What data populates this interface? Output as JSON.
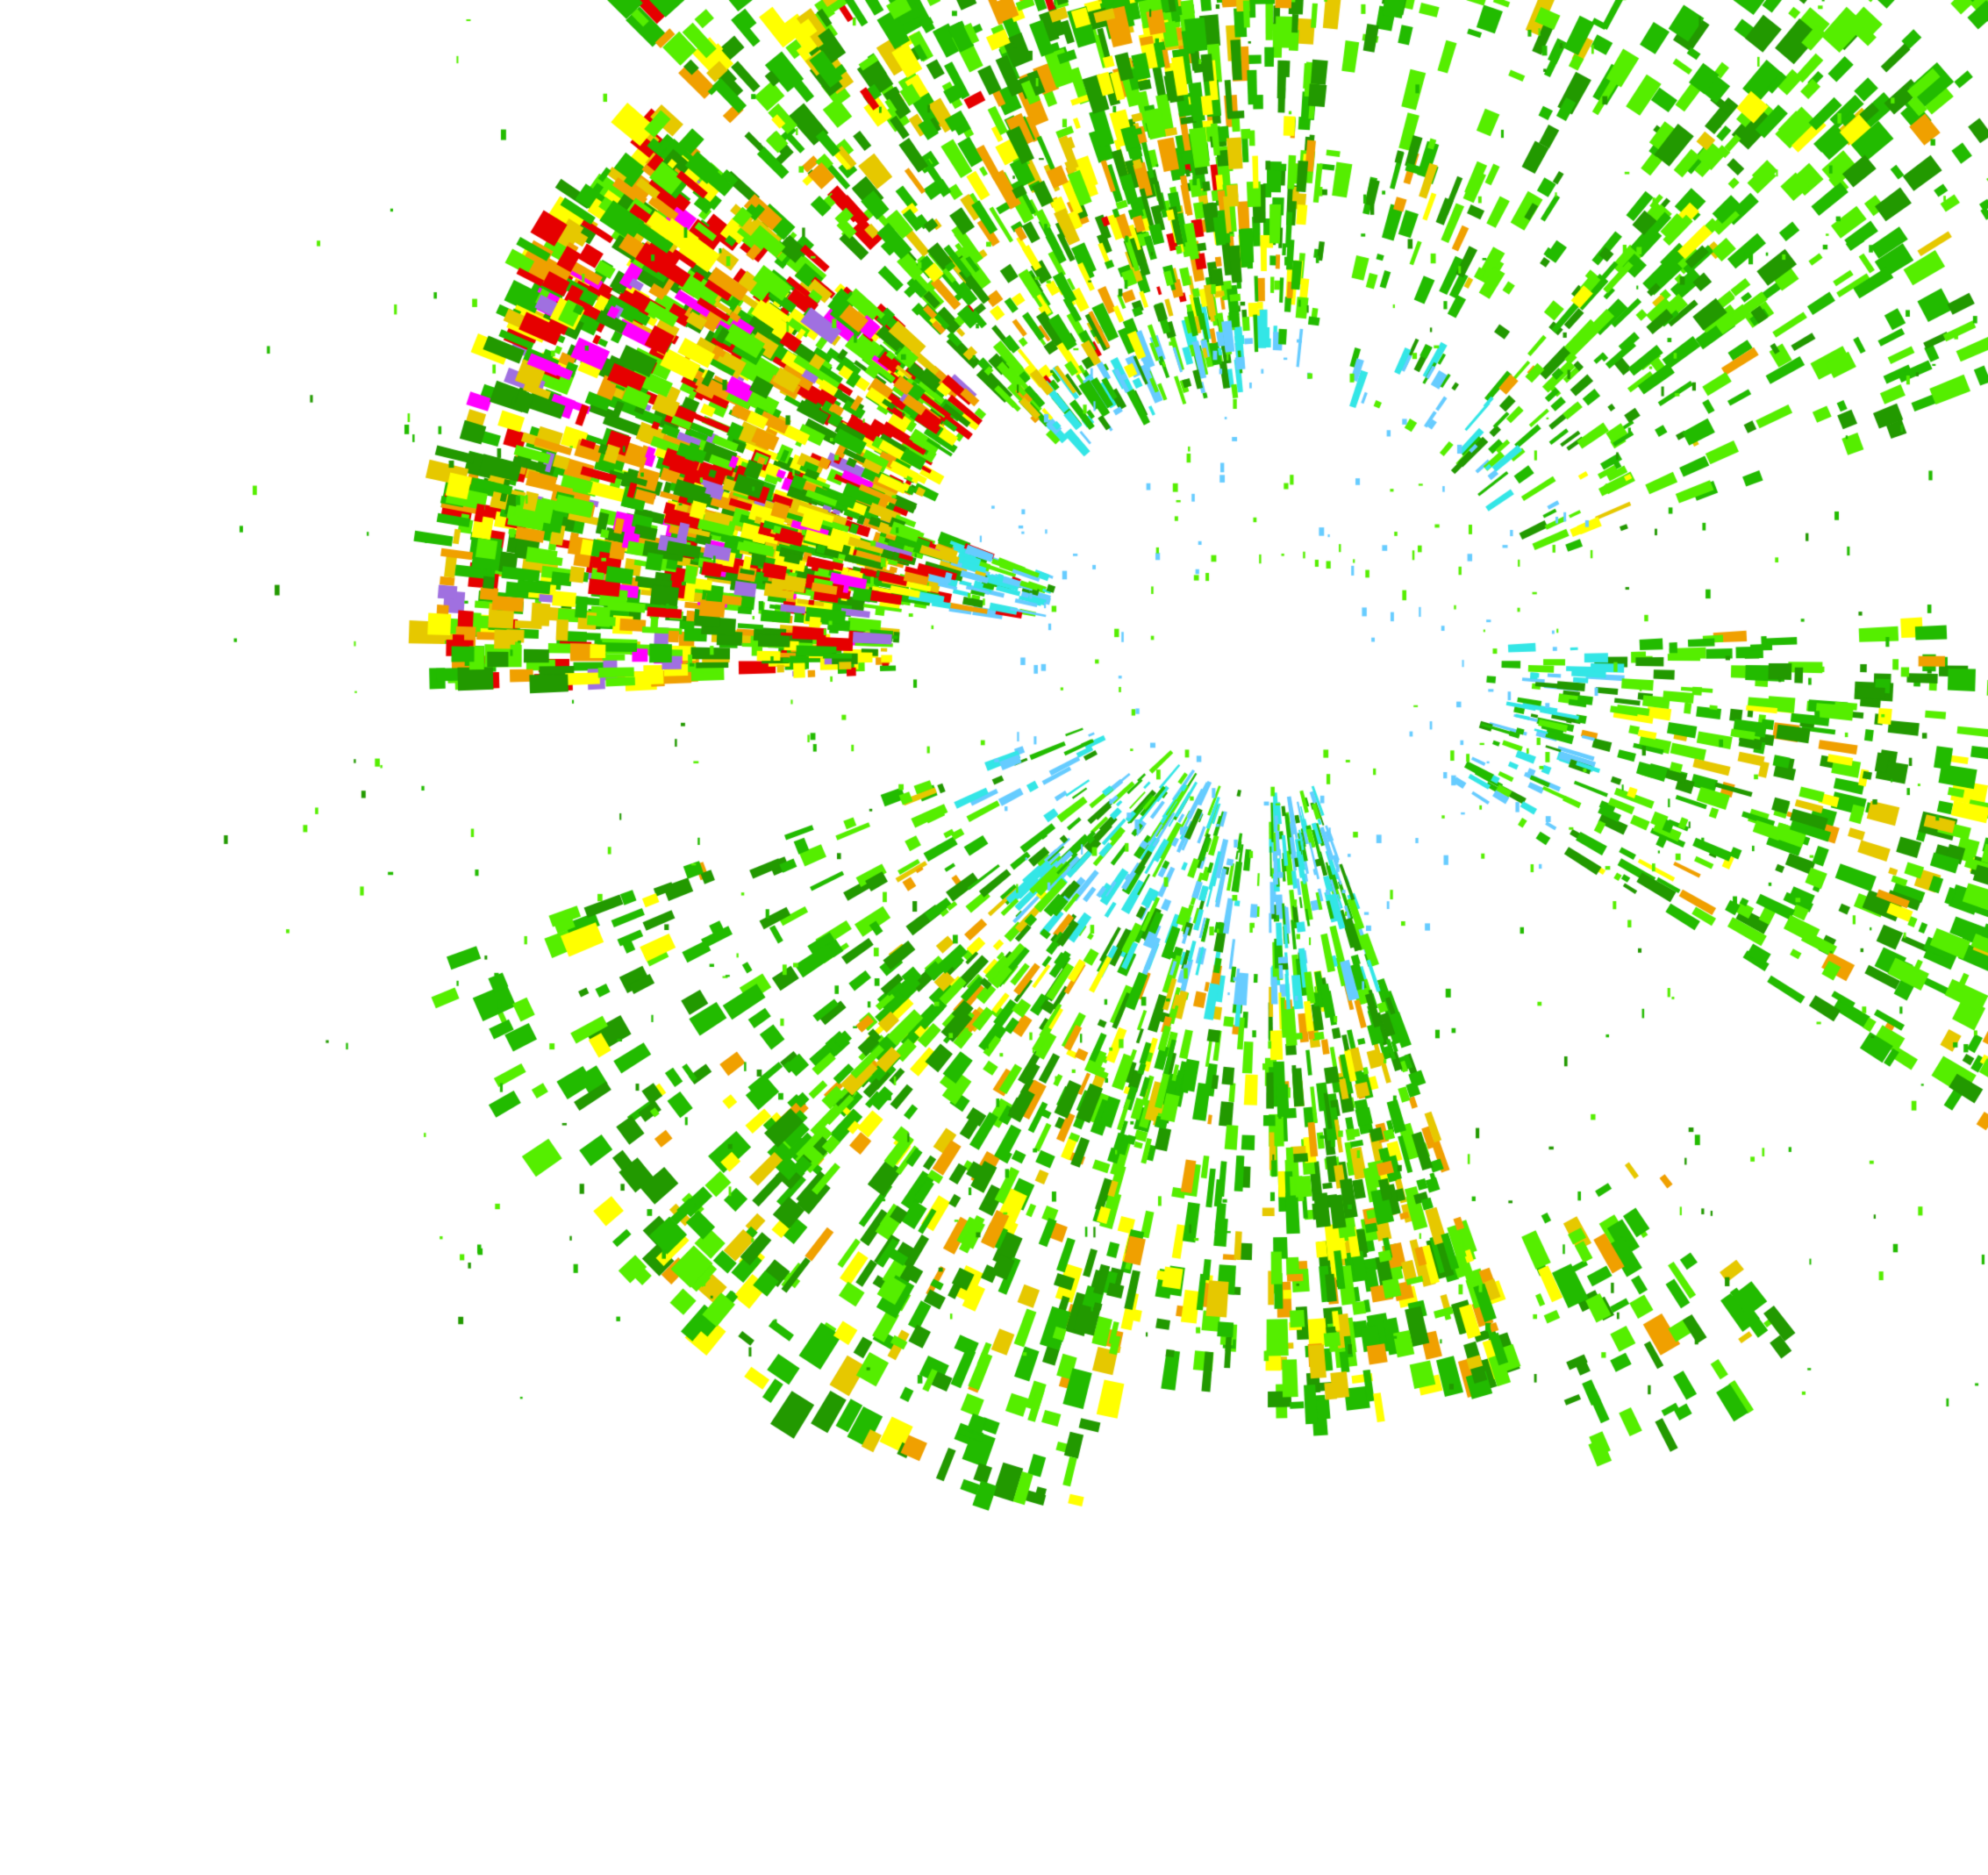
{
  "radar": {
    "background": "#ffffff",
    "palette": {
      "light_blue": "#66ccff",
      "cyan": "#33e6e6",
      "light_green": "#55ee00",
      "green": "#22bb00",
      "dark_green": "#229900",
      "yellow": "#ffff00",
      "gold": "#e6c800",
      "orange": "#f0a000",
      "red": "#e60000",
      "magenta": "#ff00ff",
      "purple": "#a070e0"
    },
    "intensity_levels": [
      "light_blue",
      "cyan",
      "light_green",
      "green",
      "dark_green",
      "yellow",
      "gold",
      "orange",
      "red",
      "magenta",
      "purple"
    ]
  }
}
